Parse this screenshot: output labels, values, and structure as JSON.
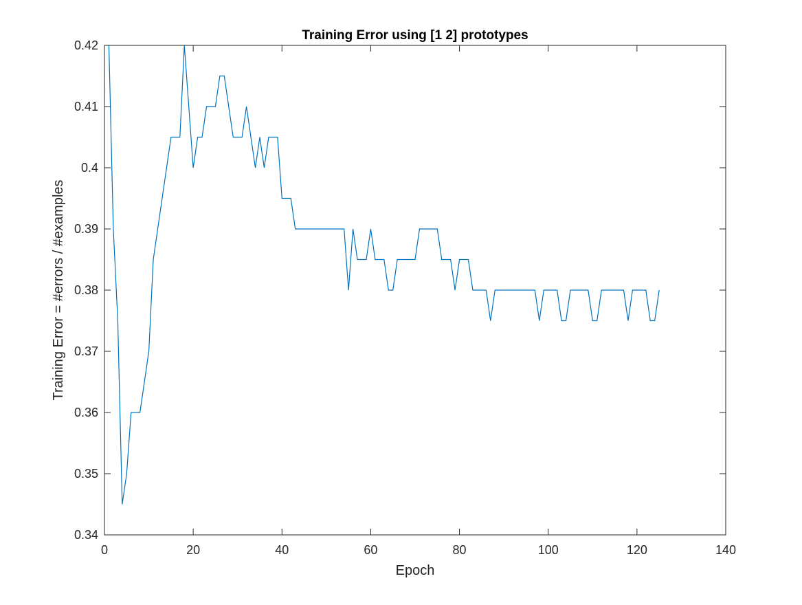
{
  "chart_data": {
    "type": "line",
    "title": "Training Error using [1 2] prototypes",
    "xlabel": "Epoch",
    "ylabel": "Training Error = #errors / #examples",
    "xlim": [
      0,
      140
    ],
    "ylim": [
      0.34,
      0.42
    ],
    "xticks": [
      0,
      20,
      40,
      60,
      80,
      100,
      120,
      140
    ],
    "yticks": [
      0.34,
      0.35,
      0.36,
      0.37,
      0.38,
      0.39,
      0.4,
      0.41,
      0.42
    ],
    "xtick_labels": [
      "0",
      "20",
      "40",
      "60",
      "80",
      "100",
      "120",
      "140"
    ],
    "ytick_labels": [
      "0.34",
      "0.35",
      "0.36",
      "0.37",
      "0.38",
      "0.39",
      "0.4",
      "0.41",
      "0.42"
    ],
    "grid": false,
    "series": [
      {
        "color": "#0072bd",
        "x": [
          1,
          2,
          3,
          4,
          5,
          6,
          7,
          8,
          9,
          10,
          11,
          12,
          13,
          14,
          15,
          16,
          17,
          18,
          19,
          20,
          21,
          22,
          23,
          24,
          25,
          26,
          27,
          28,
          29,
          30,
          31,
          32,
          33,
          34,
          35,
          36,
          37,
          38,
          39,
          40,
          41,
          42,
          43,
          44,
          45,
          46,
          47,
          48,
          49,
          50,
          51,
          52,
          53,
          54,
          55,
          56,
          57,
          58,
          59,
          60,
          61,
          62,
          63,
          64,
          65,
          66,
          67,
          68,
          69,
          70,
          71,
          72,
          73,
          74,
          75,
          76,
          77,
          78,
          79,
          80,
          81,
          82,
          83,
          84,
          85,
          86,
          87,
          88,
          89,
          90,
          91,
          92,
          93,
          94,
          95,
          96,
          97,
          98,
          99,
          100,
          101,
          102,
          103,
          104,
          105,
          106,
          107,
          108,
          109,
          110,
          111,
          112,
          113,
          114,
          115,
          116,
          117,
          118,
          119,
          120,
          121,
          122,
          123,
          124,
          125
        ],
        "y": [
          0.42,
          0.39,
          0.375,
          0.345,
          0.35,
          0.36,
          0.36,
          0.36,
          0.365,
          0.37,
          0.385,
          0.39,
          0.395,
          0.4,
          0.405,
          0.405,
          0.405,
          0.42,
          0.41,
          0.4,
          0.405,
          0.405,
          0.41,
          0.41,
          0.41,
          0.415,
          0.415,
          0.41,
          0.405,
          0.405,
          0.405,
          0.41,
          0.405,
          0.4,
          0.405,
          0.4,
          0.405,
          0.405,
          0.405,
          0.395,
          0.395,
          0.395,
          0.39,
          0.39,
          0.39,
          0.39,
          0.39,
          0.39,
          0.39,
          0.39,
          0.39,
          0.39,
          0.39,
          0.39,
          0.38,
          0.39,
          0.385,
          0.385,
          0.385,
          0.39,
          0.385,
          0.385,
          0.385,
          0.38,
          0.38,
          0.385,
          0.385,
          0.385,
          0.385,
          0.385,
          0.39,
          0.39,
          0.39,
          0.39,
          0.39,
          0.385,
          0.385,
          0.385,
          0.38,
          0.385,
          0.385,
          0.385,
          0.38,
          0.38,
          0.38,
          0.38,
          0.375,
          0.38,
          0.38,
          0.38,
          0.38,
          0.38,
          0.38,
          0.38,
          0.38,
          0.38,
          0.38,
          0.375,
          0.38,
          0.38,
          0.38,
          0.38,
          0.375,
          0.375,
          0.38,
          0.38,
          0.38,
          0.38,
          0.38,
          0.375,
          0.375,
          0.38,
          0.38,
          0.38,
          0.38,
          0.38,
          0.38,
          0.375,
          0.38,
          0.38,
          0.38,
          0.38,
          0.375,
          0.375,
          0.38
        ]
      }
    ]
  }
}
